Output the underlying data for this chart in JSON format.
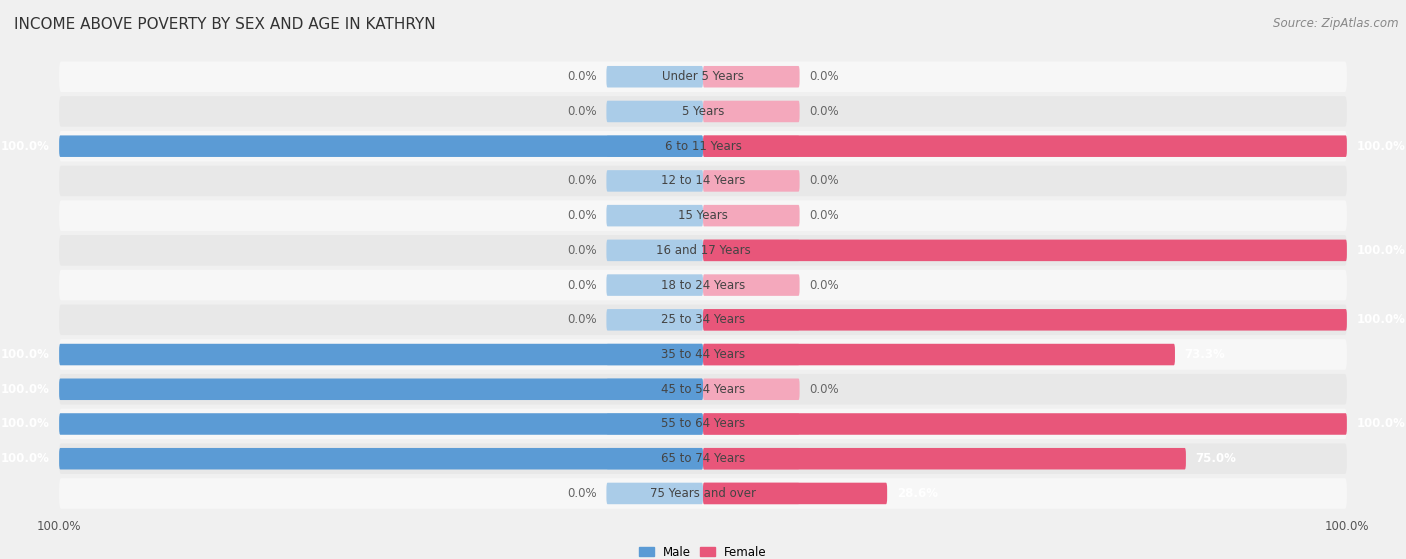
{
  "title": "INCOME ABOVE POVERTY BY SEX AND AGE IN KATHRYN",
  "source": "Source: ZipAtlas.com",
  "categories": [
    "Under 5 Years",
    "5 Years",
    "6 to 11 Years",
    "12 to 14 Years",
    "15 Years",
    "16 and 17 Years",
    "18 to 24 Years",
    "25 to 34 Years",
    "35 to 44 Years",
    "45 to 54 Years",
    "55 to 64 Years",
    "65 to 74 Years",
    "75 Years and over"
  ],
  "male": [
    0.0,
    0.0,
    100.0,
    0.0,
    0.0,
    0.0,
    0.0,
    0.0,
    100.0,
    100.0,
    100.0,
    100.0,
    0.0
  ],
  "female": [
    0.0,
    0.0,
    100.0,
    0.0,
    0.0,
    100.0,
    0.0,
    100.0,
    73.3,
    0.0,
    100.0,
    75.0,
    28.6
  ],
  "male_color_full": "#5b9bd5",
  "male_color_light": "#aacce8",
  "female_color_full": "#e8567a",
  "female_color_light": "#f4a8bc",
  "male_label": "Male",
  "female_label": "Female",
  "bg_color": "#f0f0f0",
  "row_bg_light": "#f7f7f7",
  "row_bg_dark": "#e8e8e8",
  "xlim": 100,
  "title_fontsize": 11,
  "label_fontsize": 8.5,
  "cat_fontsize": 8.5,
  "tick_fontsize": 8.5,
  "source_fontsize": 8.5
}
